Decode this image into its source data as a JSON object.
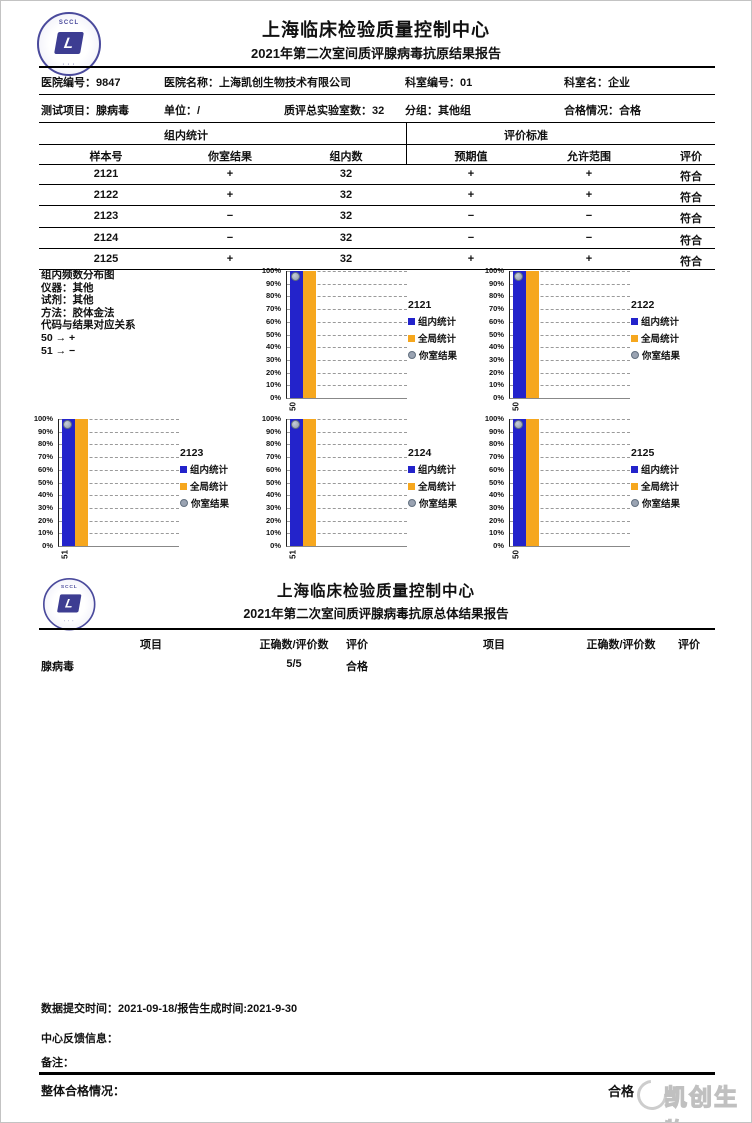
{
  "colors": {
    "bar_group": "#2323CB",
    "bar_global": "#F6A71E",
    "marker_fill": "#9AA3B2",
    "marker_border": "#62707F",
    "seal": "#4A4A9C",
    "watermark": "#C6C6C6"
  },
  "report1": {
    "title": "上海临床检验质量控制中心",
    "subtitle": "2021年第二次室间质评腺病毒抗原结果报告",
    "seal_acronym": "SCCL",
    "seal_letter": "L"
  },
  "info_rows": {
    "row1": [
      {
        "label": "医院编号：",
        "value": "9847"
      },
      {
        "label": "医院名称：",
        "value": "上海凯创生物技术有限公司"
      },
      {
        "label": "科室编号：",
        "value": "01"
      },
      {
        "label": "科室名：",
        "value": "企业"
      }
    ],
    "row2": [
      {
        "label": "测试项目：",
        "value": "腺病毒"
      },
      {
        "label": "单位：",
        "value": "/"
      },
      {
        "label": "质评总实验室数：",
        "value": "32"
      },
      {
        "label": "分组：",
        "value": "其他组"
      },
      {
        "label": "合格情况：",
        "value": "合格"
      }
    ]
  },
  "results_table": {
    "group_headers": [
      "组内统计",
      "评价标准"
    ],
    "columns": [
      "样本号",
      "你室结果",
      "组内数",
      "预期值",
      "允许范围",
      "评价"
    ],
    "rows": [
      [
        "2121",
        "+",
        "32",
        "+",
        "+",
        "符合"
      ],
      [
        "2122",
        "+",
        "32",
        "+",
        "+",
        "符合"
      ],
      [
        "2123",
        "−",
        "32",
        "−",
        "−",
        "符合"
      ],
      [
        "2124",
        "−",
        "32",
        "−",
        "−",
        "符合"
      ],
      [
        "2125",
        "+",
        "32",
        "+",
        "+",
        "符合"
      ]
    ]
  },
  "charts_info": {
    "heading": "组内频数分布图",
    "instrument_label": "仪器：",
    "instrument": "其他",
    "reagent_label": "试剂：",
    "reagent": "其他",
    "method_label": "方法：",
    "method": "胶体金法",
    "code_map_heading": "代码与结果对应关系",
    "code_map": [
      {
        "code": "50",
        "arrow": "→",
        "result": "+"
      },
      {
        "code": "51",
        "arrow": "→",
        "result": "−"
      }
    ]
  },
  "chart_data": {
    "type": "bar",
    "ylim": [
      0,
      100
    ],
    "ytick_labels": [
      "100%",
      "90%",
      "80%",
      "70%",
      "60%",
      "50%",
      "40%",
      "30%",
      "20%",
      "10%",
      "0%"
    ],
    "grid": "horizontal-dashed",
    "legend_position": "right",
    "series_colors": {
      "组内统计": "#2323CB",
      "全局统计": "#F6A71E",
      "你室结果": "#9AA3B2"
    },
    "charts": [
      {
        "title": "2121",
        "category": "50",
        "series": [
          {
            "name": "组内统计",
            "value": 100
          },
          {
            "name": "全局统计",
            "value": 100
          }
        ],
        "marker": {
          "name": "你室结果",
          "value": 100
        }
      },
      {
        "title": "2122",
        "category": "50",
        "series": [
          {
            "name": "组内统计",
            "value": 100
          },
          {
            "name": "全局统计",
            "value": 100
          }
        ],
        "marker": {
          "name": "你室结果",
          "value": 100
        }
      },
      {
        "title": "2123",
        "category": "51",
        "series": [
          {
            "name": "组内统计",
            "value": 100
          },
          {
            "name": "全局统计",
            "value": 100
          }
        ],
        "marker": {
          "name": "你室结果",
          "value": 100
        }
      },
      {
        "title": "2124",
        "category": "51",
        "series": [
          {
            "name": "组内统计",
            "value": 100
          },
          {
            "name": "全局统计",
            "value": 100
          }
        ],
        "marker": {
          "name": "你室结果",
          "value": 100
        }
      },
      {
        "title": "2125",
        "category": "50",
        "series": [
          {
            "name": "组内统计",
            "value": 100
          },
          {
            "name": "全局统计",
            "value": 100
          }
        ],
        "marker": {
          "name": "你室结果",
          "value": 100
        }
      }
    ]
  },
  "report2": {
    "title": "上海临床检验质量控制中心",
    "subtitle": "2021年第二次室间质评腺病毒抗原总体结果报告",
    "columns": [
      "项目",
      "正确数/评价数",
      "评价",
      "项目",
      "正确数/评价数",
      "评价"
    ],
    "row": {
      "item": "腺病毒",
      "score": "5/5",
      "evaluation": "合格"
    }
  },
  "footer": {
    "submit_line": "数据提交时间：2021-09-18/报告生成时间:2021-9-30",
    "feedback_label": "中心反馈信息：",
    "note_label": "备注：",
    "overall_label": "整体合格情况：",
    "overall_value": "合格",
    "watermark_text": "凯创生物"
  }
}
